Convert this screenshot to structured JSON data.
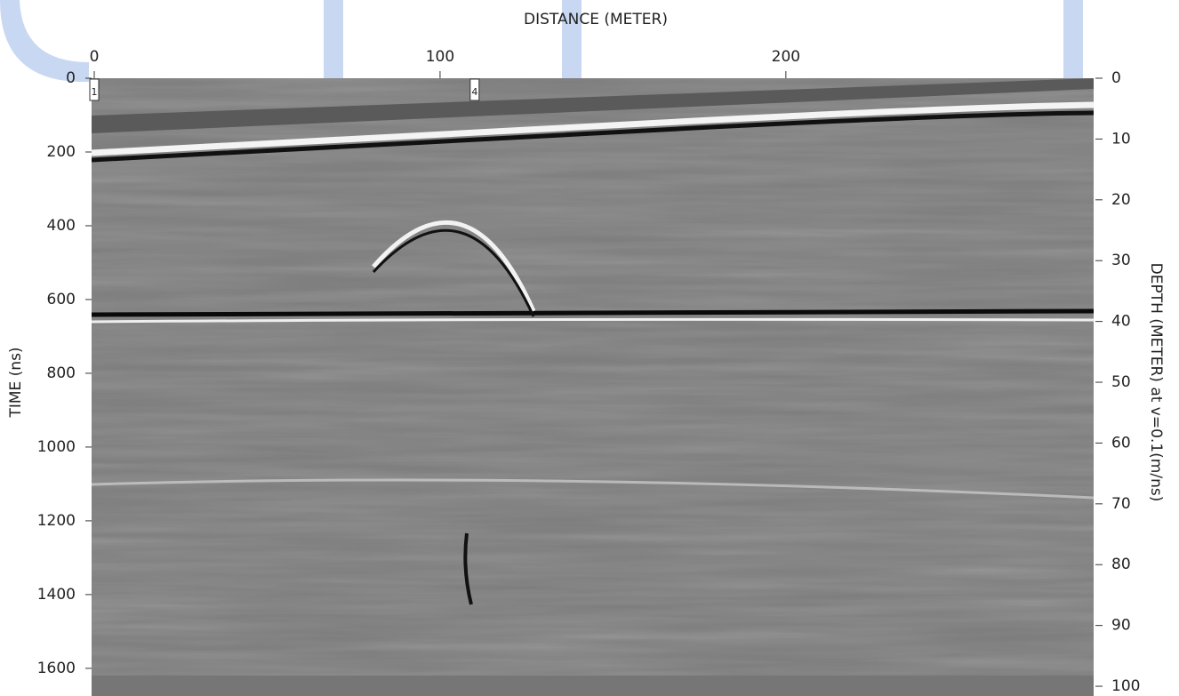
{
  "chart_data": {
    "type": "radargram",
    "xlabel": "DISTANCE (METER)",
    "ylabel": "TIME (ns)",
    "y2label": "DEPTH (METER) at v=0.1(m/ns)",
    "xlim": [
      0,
      289
    ],
    "xticks": [
      0,
      100,
      200
    ],
    "ylim": [
      0,
      1675
    ],
    "yticks": [
      0,
      200,
      400,
      600,
      800,
      1000,
      1200,
      1400,
      1600
    ],
    "y2lim": [
      0,
      101.6
    ],
    "y2ticks": [
      0,
      10,
      20,
      30,
      40,
      50,
      60,
      70,
      80,
      90,
      100
    ],
    "markers": [
      {
        "x": 0,
        "label": "1"
      },
      {
        "x": 110,
        "label": "4"
      }
    ]
  }
}
